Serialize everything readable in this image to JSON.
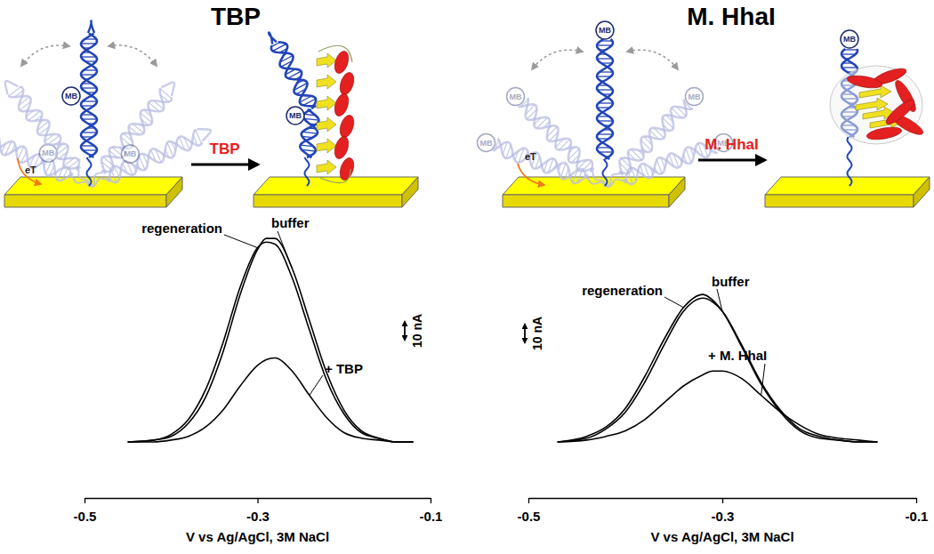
{
  "chart_data": [
    {
      "type": "line",
      "title": "TBP",
      "x_label": "V vs Ag/AgCl, 3M NaCl",
      "x": [
        -0.45,
        -0.42,
        -0.4,
        -0.38,
        -0.36,
        -0.34,
        -0.32,
        -0.3,
        -0.29,
        -0.28,
        -0.26,
        -0.24,
        -0.22,
        -0.2,
        -0.18,
        -0.16,
        -0.14,
        -0.12
      ],
      "series": [
        {
          "name": "buffer",
          "color": "#000000",
          "values": [
            0,
            1,
            3,
            10,
            24,
            48,
            79,
            103,
            109,
            109,
            93,
            65,
            37,
            17,
            6,
            2,
            0,
            0
          ]
        },
        {
          "name": "regeneration",
          "color": "#000000",
          "values": [
            0,
            1,
            4,
            12,
            28,
            53,
            83,
            104,
            107,
            106,
            88,
            60,
            33,
            15,
            5,
            2,
            0,
            0
          ]
        },
        {
          "name": "+ TBP",
          "color": "#000000",
          "values": [
            0,
            0,
            1,
            3,
            8,
            17,
            30,
            41,
            44,
            45,
            38,
            25,
            13,
            5,
            2,
            1,
            0,
            0
          ]
        }
      ],
      "xlim": [
        -0.5,
        -0.1
      ],
      "xticks": [
        -0.5,
        -0.3,
        -0.1
      ],
      "ylim": [
        -30,
        130
      ],
      "tick_labels": "x",
      "scale_bar": {
        "value": 10,
        "label": "10 nA"
      },
      "annotations": [
        "MB",
        "eT",
        "TBP"
      ]
    },
    {
      "type": "line",
      "title": "M. HhaI",
      "x_label": "V vs Ag/AgCl, 3M NaCl",
      "x": [
        -0.47,
        -0.44,
        -0.42,
        -0.4,
        -0.38,
        -0.36,
        -0.34,
        -0.32,
        -0.31,
        -0.3,
        -0.28,
        -0.26,
        -0.24,
        -0.22,
        -0.2,
        -0.18,
        -0.16,
        -0.14
      ],
      "series": [
        {
          "name": "buffer",
          "color": "#000000",
          "values": [
            0,
            2,
            7,
            16,
            32,
            52,
            70,
            77,
            75,
            70,
            52,
            32,
            17,
            7,
            3,
            1,
            0,
            0
          ]
        },
        {
          "name": "regeneration",
          "color": "#000000",
          "values": [
            0,
            3,
            8,
            18,
            35,
            55,
            72,
            79,
            76,
            70,
            51,
            31,
            16,
            6,
            2,
            1,
            0,
            0
          ]
        },
        {
          "name": "+ M. HhaI",
          "color": "#000000",
          "values": [
            0,
            1,
            3,
            6,
            12,
            21,
            30,
            36,
            38,
            38,
            34,
            25,
            16,
            9,
            4,
            2,
            1,
            0
          ]
        }
      ],
      "xlim": [
        -0.5,
        -0.1
      ],
      "xticks": [
        -0.5,
        -0.3,
        -0.1
      ],
      "ylim": [
        -30,
        130
      ],
      "tick_labels": "x",
      "scale_bar": {
        "value": 10,
        "label": "10 nA"
      },
      "annotations": [
        "MB",
        "eT",
        "M. HhaI"
      ]
    }
  ]
}
